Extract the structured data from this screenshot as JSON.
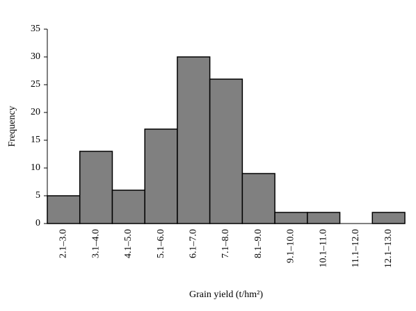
{
  "chart_data": {
    "type": "bar",
    "x_label": "Grain yield (t/hm²)",
    "y_label": "Frequency",
    "categories": [
      "2.1–3.0",
      "3.1–4.0",
      "4.1–5.0",
      "5.1–6.0",
      "6.1–7.0",
      "7.1–8.0",
      "8.1–9.0",
      "9.1–10.0",
      "10.1–11.0",
      "11.1–12.0",
      "12.1–13.0"
    ],
    "values": [
      5,
      13,
      6,
      17,
      30,
      26,
      9,
      2,
      2,
      0,
      2
    ],
    "color": "#808080",
    "ylim": [
      0,
      35
    ],
    "yticks": [
      0,
      5,
      10,
      15,
      20,
      25,
      30,
      35
    ],
    "grid": false
  }
}
